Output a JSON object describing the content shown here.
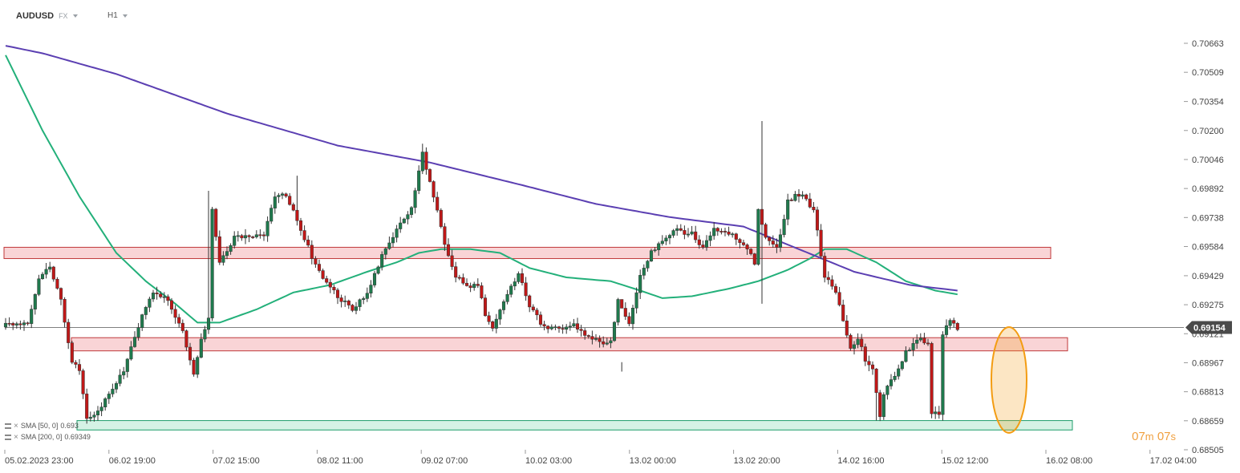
{
  "header": {
    "symbol": "AUDUSD",
    "market": "FX",
    "timeframe": "H1"
  },
  "price_tag": {
    "value": "0.69154",
    "color": "#4a4a4a"
  },
  "timer": {
    "min": "07",
    "min_unit": "m",
    "sec": "07",
    "sec_unit": "s"
  },
  "legend": [
    {
      "label": "SMA [50, 0]",
      "value": "0.693"
    },
    {
      "label": "SMA [200, 0]",
      "value": "0.69349"
    }
  ],
  "colors": {
    "up": "#1f7a4d",
    "down": "#c01818",
    "sma50": "#23b07a",
    "sma200": "#5b3fb2",
    "zone_red": "#f9d4d6",
    "zone_green": "#d5f2e5",
    "highlight": "#f39c12"
  },
  "chart_data": {
    "type": "candlestick",
    "y_ticks": [
      "0.70663",
      "0.70509",
      "0.70354",
      "0.70200",
      "0.70046",
      "0.69892",
      "0.69738",
      "0.69584",
      "0.69429",
      "0.69275",
      "0.69121",
      "0.68967",
      "0.68813",
      "0.68659",
      "0.68505"
    ],
    "ylim": [
      0.68505,
      0.70663
    ],
    "x_ticks": [
      "05.02.2023 23:00",
      "06.02 19:00",
      "07.02 15:00",
      "08.02 11:00",
      "09.02 07:00",
      "10.02 03:00",
      "13.02 00:00",
      "13.02 20:00",
      "14.02 16:00",
      "15.02 12:00",
      "16.02 08:00",
      "17.02 04:00"
    ],
    "current_price": 0.69154,
    "zones": [
      {
        "type": "resistance",
        "from": 0.6952,
        "to": 0.6958
      },
      {
        "type": "support",
        "from": 0.6903,
        "to": 0.691
      },
      {
        "type": "support",
        "from": 0.6861,
        "to": 0.6866
      }
    ],
    "anchors": [
      [
        0,
        0.6917
      ],
      [
        6,
        0.6918
      ],
      [
        9,
        0.6942
      ],
      [
        12,
        0.6948
      ],
      [
        15,
        0.693
      ],
      [
        18,
        0.6897
      ],
      [
        20,
        0.6893
      ],
      [
        22,
        0.6866
      ],
      [
        24,
        0.6868
      ],
      [
        28,
        0.688
      ],
      [
        32,
        0.6893
      ],
      [
        35,
        0.691
      ],
      [
        37,
        0.6922
      ],
      [
        40,
        0.6935
      ],
      [
        44,
        0.693
      ],
      [
        48,
        0.6913
      ],
      [
        51,
        0.689
      ],
      [
        53,
        0.691
      ],
      [
        55,
        0.692
      ],
      [
        56,
        0.6978
      ],
      [
        58,
        0.695
      ],
      [
        62,
        0.6963
      ],
      [
        66,
        0.6964
      ],
      [
        70,
        0.6965
      ],
      [
        73,
        0.6985
      ],
      [
        76,
        0.6986
      ],
      [
        80,
        0.6968
      ],
      [
        83,
        0.6953
      ],
      [
        86,
        0.6942
      ],
      [
        90,
        0.6932
      ],
      [
        94,
        0.6925
      ],
      [
        98,
        0.6933
      ],
      [
        102,
        0.6953
      ],
      [
        106,
        0.6968
      ],
      [
        110,
        0.6978
      ],
      [
        113,
        0.7008
      ],
      [
        116,
        0.6985
      ],
      [
        119,
        0.696
      ],
      [
        122,
        0.6943
      ],
      [
        125,
        0.6937
      ],
      [
        128,
        0.6938
      ],
      [
        130,
        0.6922
      ],
      [
        132,
        0.6916
      ],
      [
        136,
        0.6932
      ],
      [
        139,
        0.6945
      ],
      [
        142,
        0.6927
      ],
      [
        146,
        0.6915
      ],
      [
        150,
        0.6915
      ],
      [
        154,
        0.6917
      ],
      [
        158,
        0.691
      ],
      [
        162,
        0.6907
      ],
      [
        164,
        0.6908
      ],
      [
        166,
        0.693
      ],
      [
        169,
        0.6917
      ],
      [
        172,
        0.6942
      ],
      [
        175,
        0.6955
      ],
      [
        178,
        0.6962
      ],
      [
        182,
        0.6967
      ],
      [
        186,
        0.6965
      ],
      [
        189,
        0.6958
      ],
      [
        192,
        0.6968
      ],
      [
        196,
        0.6966
      ],
      [
        200,
        0.696
      ],
      [
        203,
        0.695
      ],
      [
        204,
        0.6978
      ],
      [
        206,
        0.6962
      ],
      [
        209,
        0.6957
      ],
      [
        212,
        0.6982
      ],
      [
        214,
        0.6986
      ],
      [
        216,
        0.6985
      ],
      [
        219,
        0.6978
      ],
      [
        222,
        0.6942
      ],
      [
        225,
        0.6935
      ],
      [
        227,
        0.692
      ],
      [
        229,
        0.6905
      ],
      [
        231,
        0.691
      ],
      [
        233,
        0.6898
      ],
      [
        235,
        0.6893
      ],
      [
        237,
        0.6868
      ],
      [
        238,
        0.688
      ],
      [
        240,
        0.6887
      ],
      [
        242,
        0.6893
      ],
      [
        244,
        0.6902
      ],
      [
        246,
        0.6907
      ],
      [
        248,
        0.6909
      ],
      [
        250,
        0.6907
      ],
      [
        251,
        0.687
      ],
      [
        253,
        0.687
      ],
      [
        254,
        0.6912
      ],
      [
        256,
        0.692
      ],
      [
        258,
        0.6915
      ]
    ],
    "spikes": [
      {
        "i": 55,
        "high": 0.6988
      },
      {
        "i": 79,
        "high": 0.6996
      },
      {
        "i": 113,
        "high": 0.7013
      },
      {
        "i": 167,
        "high": 0.6897,
        "low": 0.6892
      },
      {
        "i": 205,
        "high": 0.7025,
        "low": 0.6928
      },
      {
        "i": 236,
        "low": 0.6866
      }
    ],
    "sma50": [
      [
        0,
        0.706
      ],
      [
        10,
        0.702
      ],
      [
        20,
        0.6985
      ],
      [
        30,
        0.6955
      ],
      [
        38,
        0.694
      ],
      [
        46,
        0.6928
      ],
      [
        52,
        0.6918
      ],
      [
        58,
        0.6918
      ],
      [
        68,
        0.6925
      ],
      [
        78,
        0.6934
      ],
      [
        88,
        0.6938
      ],
      [
        98,
        0.6945
      ],
      [
        106,
        0.695
      ],
      [
        112,
        0.6955
      ],
      [
        118,
        0.6957
      ],
      [
        126,
        0.6957
      ],
      [
        134,
        0.6955
      ],
      [
        142,
        0.6947
      ],
      [
        152,
        0.6942
      ],
      [
        164,
        0.694
      ],
      [
        172,
        0.6935
      ],
      [
        178,
        0.6931
      ],
      [
        186,
        0.6932
      ],
      [
        196,
        0.6936
      ],
      [
        204,
        0.694
      ],
      [
        212,
        0.6946
      ],
      [
        218,
        0.6952
      ],
      [
        222,
        0.6957
      ],
      [
        228,
        0.6957
      ],
      [
        236,
        0.695
      ],
      [
        244,
        0.694
      ],
      [
        252,
        0.6935
      ],
      [
        258,
        0.6933
      ]
    ],
    "sma200": [
      [
        0,
        0.7065
      ],
      [
        10,
        0.7061
      ],
      [
        30,
        0.705
      ],
      [
        60,
        0.7029
      ],
      [
        90,
        0.7012
      ],
      [
        115,
        0.7003
      ],
      [
        140,
        0.6991
      ],
      [
        160,
        0.6981
      ],
      [
        180,
        0.6974
      ],
      [
        200,
        0.6969
      ],
      [
        215,
        0.6957
      ],
      [
        230,
        0.6945
      ],
      [
        245,
        0.6938
      ],
      [
        258,
        0.6935
      ]
    ]
  }
}
